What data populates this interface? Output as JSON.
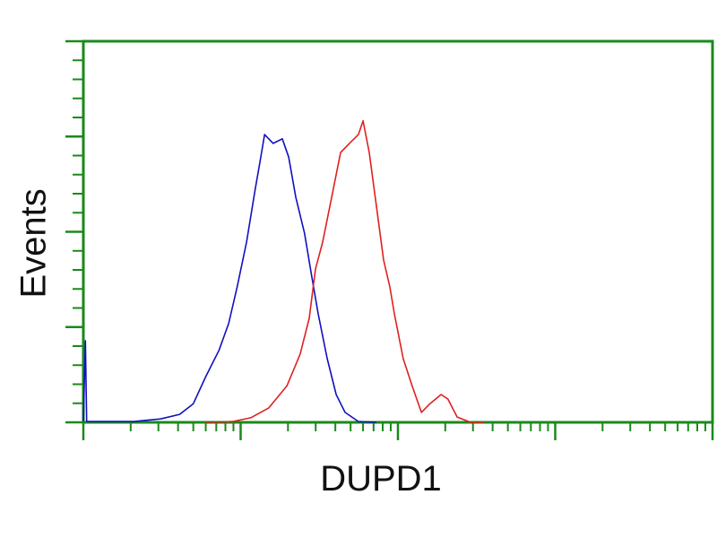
{
  "chart_data": {
    "type": "line",
    "title": "",
    "xlabel": "DUPD1",
    "ylabel": "Events",
    "x_scale": "log",
    "xlim": [
      1,
      10000
    ],
    "ylim": [
      0,
      100
    ],
    "grid": false,
    "legend": "none",
    "axis_color": "#1a8a1a",
    "series": [
      {
        "color": "#1010c0",
        "x": [
          1,
          1.03,
          1.05,
          1.1,
          2.1,
          3.1,
          4.1,
          5.0,
          6.0,
          7.3,
          8.4,
          9.5,
          10.9,
          12.4,
          13.3,
          14.2,
          16.1,
          18.4,
          20.2,
          22.4,
          25.5,
          28.4,
          31.1,
          35.5,
          40.5,
          46.1,
          56.1,
          73.0
        ],
        "y": [
          0.2,
          21.4,
          0.2,
          0.2,
          0.2,
          0.9,
          2.1,
          4.9,
          12,
          19,
          26,
          35.5,
          47.3,
          61.4,
          68.5,
          75.5,
          73.2,
          74.4,
          69.6,
          59.1,
          49.6,
          37.9,
          28.5,
          16.7,
          7.3,
          2.6,
          0.2,
          0
        ]
      },
      {
        "color": "#e02020",
        "x": [
          6.0,
          8.9,
          11.6,
          15.1,
          19.7,
          23.9,
          27.3,
          29.9,
          33.2,
          37.9,
          43.2,
          49.2,
          56.1,
          60,
          65.7,
          73,
          81.1,
          88.9,
          94.9,
          108,
          123,
          141,
          160,
          188,
          208,
          238,
          290,
          352
        ],
        "y": [
          0,
          0.2,
          1.2,
          3.8,
          9.6,
          17.9,
          27.3,
          40.2,
          47.3,
          59.1,
          70.8,
          73.2,
          75.5,
          79.1,
          70.8,
          56.7,
          42.6,
          35.5,
          28.5,
          16.7,
          9.6,
          2.6,
          4.9,
          7.3,
          6.1,
          1.4,
          0,
          0
        ]
      }
    ]
  }
}
